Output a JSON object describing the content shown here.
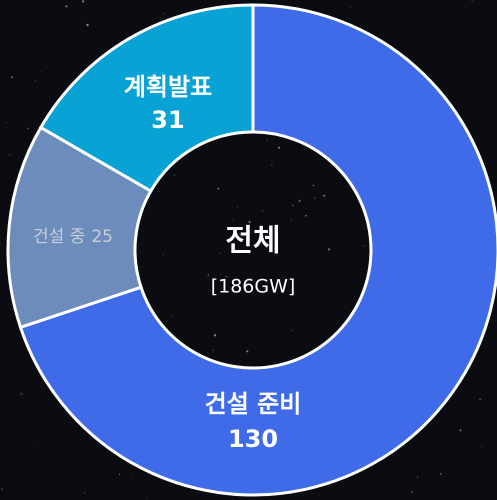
{
  "chart_data": {
    "type": "donut",
    "categories": [
      "건설 준비",
      "건설 중",
      "계획발표"
    ],
    "values": [
      130,
      25,
      31
    ],
    "colors": [
      "#3f6be8",
      "#6c8cbb",
      "#08a2d4"
    ],
    "label_colors": [
      "#ffffff",
      "#c9ced8",
      "#ffffff"
    ],
    "center_label": "전체",
    "total_label": "[186GW]"
  }
}
